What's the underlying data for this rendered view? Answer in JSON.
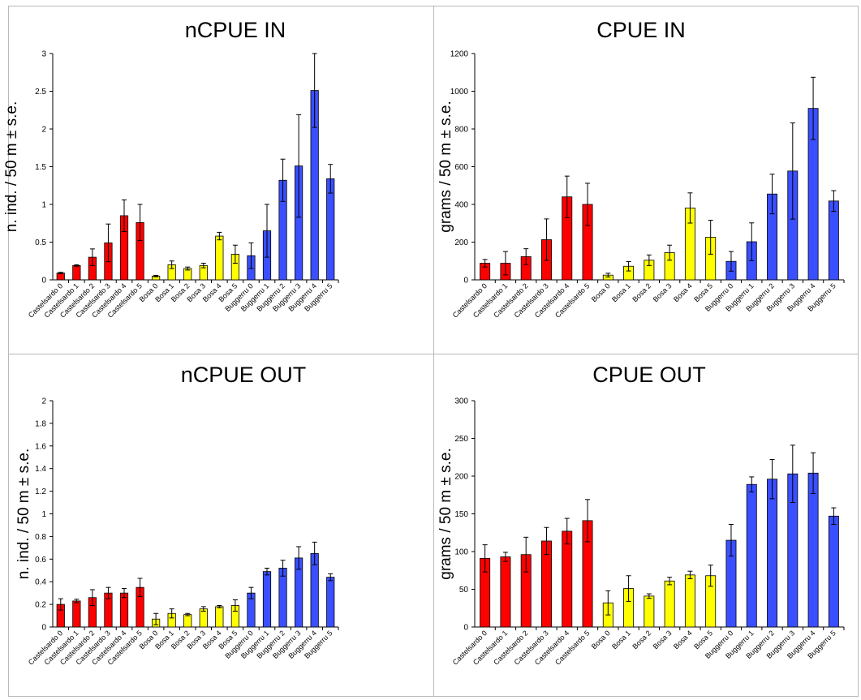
{
  "chart_data": [
    {
      "type": "bar",
      "title": "nCPUE IN",
      "ylabel": "n. ind. / 50 m ± s.e.",
      "ylim": [
        0,
        3
      ],
      "yticks": [
        0,
        0.5,
        1,
        1.5,
        2,
        2.5,
        3
      ],
      "categories": [
        "Castelsardo 0",
        "Castelsardo 1",
        "Castelsardo 2",
        "Castelsardo 3",
        "Castelsardo 4",
        "Castelsardo 5",
        "Bosa 0",
        "Bosa 1",
        "Bosa 2",
        "Bosa 3",
        "Bosa 4",
        "Bosa 5",
        "Buggerru 0",
        "Buggerru 1",
        "Buggerru 2",
        "Buggerru 3",
        "Buggerru 4",
        "Buggerru 5"
      ],
      "values": [
        0.09,
        0.19,
        0.3,
        0.49,
        0.85,
        0.76,
        0.05,
        0.2,
        0.15,
        0.19,
        0.58,
        0.34,
        0.32,
        0.65,
        1.32,
        1.51,
        2.51,
        1.34
      ],
      "errors": [
        0.01,
        0.01,
        0.11,
        0.25,
        0.21,
        0.24,
        0.01,
        0.05,
        0.02,
        0.03,
        0.05,
        0.12,
        0.17,
        0.35,
        0.28,
        0.68,
        0.49,
        0.19
      ],
      "colors": [
        "#ff0000",
        "#ff0000",
        "#ff0000",
        "#ff0000",
        "#ff0000",
        "#ff0000",
        "#ffff00",
        "#ffff00",
        "#ffff00",
        "#ffff00",
        "#ffff00",
        "#ffff00",
        "#3a4fff",
        "#3a4fff",
        "#3a4fff",
        "#3a4fff",
        "#3a4fff",
        "#3a4fff"
      ]
    },
    {
      "type": "bar",
      "title": "CPUE IN",
      "ylabel": "grams / 50 m ± s.e.",
      "ylim": [
        0,
        1200
      ],
      "yticks": [
        0,
        200,
        400,
        600,
        800,
        1000,
        1200
      ],
      "categories": [
        "Castelsardo 0",
        "Castelsardo 1",
        "Castelsardo 2",
        "Castelsardo 3",
        "Castelsardo 4",
        "Castelsardo 5",
        "Bosa 0",
        "Bosa 1",
        "Bosa 2",
        "Bosa 3",
        "Bosa 4",
        "Bosa 5",
        "Buggerru 0",
        "Buggerru 1",
        "Buggerru 2",
        "Buggerru 3",
        "Buggerru 4",
        "Buggerru 5"
      ],
      "values": [
        88,
        88,
        123,
        213,
        440,
        400,
        25,
        72,
        104,
        144,
        381,
        226,
        98,
        202,
        455,
        577,
        909,
        418
      ],
      "errors": [
        20,
        62,
        42,
        110,
        110,
        112,
        10,
        25,
        28,
        40,
        80,
        90,
        52,
        100,
        105,
        255,
        165,
        55
      ],
      "colors": [
        "#ff0000",
        "#ff0000",
        "#ff0000",
        "#ff0000",
        "#ff0000",
        "#ff0000",
        "#ffff00",
        "#ffff00",
        "#ffff00",
        "#ffff00",
        "#ffff00",
        "#ffff00",
        "#3a4fff",
        "#3a4fff",
        "#3a4fff",
        "#3a4fff",
        "#3a4fff",
        "#3a4fff"
      ]
    },
    {
      "type": "bar",
      "title": "nCPUE OUT",
      "ylabel": "n. ind. / 50 m ± s.e.",
      "ylim": [
        0,
        2
      ],
      "yticks": [
        0,
        0.2,
        0.4,
        0.6,
        0.8,
        1,
        1.2,
        1.4,
        1.6,
        1.8,
        2
      ],
      "categories": [
        "Castelsardo 0",
        "Castelsardo 1",
        "Castelsardo 2",
        "Castelsardo 3",
        "Castelsardo 4",
        "Castelsardo 5",
        "Bosa 0",
        "Bosa 1",
        "Bosa 2",
        "Bosa 3",
        "Bosa 4",
        "Bosa 5",
        "Buggerru 0",
        "Buggerru 1",
        "Buggerru 2",
        "Buggerru 3",
        "Buggerru 4",
        "Buggerru 5"
      ],
      "values": [
        0.2,
        0.23,
        0.26,
        0.3,
        0.3,
        0.35,
        0.07,
        0.12,
        0.11,
        0.16,
        0.18,
        0.19,
        0.3,
        0.49,
        0.52,
        0.61,
        0.65,
        0.44
      ],
      "errors": [
        0.05,
        0.015,
        0.07,
        0.05,
        0.04,
        0.08,
        0.05,
        0.04,
        0.01,
        0.02,
        0.01,
        0.05,
        0.05,
        0.03,
        0.07,
        0.1,
        0.1,
        0.03
      ],
      "colors": [
        "#ff0000",
        "#ff0000",
        "#ff0000",
        "#ff0000",
        "#ff0000",
        "#ff0000",
        "#ffff00",
        "#ffff00",
        "#ffff00",
        "#ffff00",
        "#ffff00",
        "#ffff00",
        "#3a4fff",
        "#3a4fff",
        "#3a4fff",
        "#3a4fff",
        "#3a4fff",
        "#3a4fff"
      ]
    },
    {
      "type": "bar",
      "title": "CPUE OUT",
      "ylabel": "grams / 50 m ± s.e.",
      "ylim": [
        0,
        300
      ],
      "yticks": [
        0,
        50,
        100,
        150,
        200,
        250,
        300
      ],
      "categories": [
        "Castelsardo 0",
        "Castelsardo 1",
        "Castelsardo 2",
        "Castelsardo 3",
        "Castelsardo 4",
        "Castelsardo 5",
        "Bosa 0",
        "Bosa 1",
        "Bosa 2",
        "Bosa 3",
        "Bosa 4",
        "Bosa 5",
        "Buggerru 0",
        "Buggerru 1",
        "Buggerru 2",
        "Buggerru 3",
        "Buggerru 4",
        "Buggerru 5"
      ],
      "values": [
        91,
        93,
        96,
        114,
        127,
        141,
        32,
        51,
        41,
        61,
        69,
        68,
        115,
        189,
        196,
        203,
        204,
        147
      ],
      "errors": [
        18,
        6,
        23,
        18,
        17,
        28,
        16,
        17,
        3,
        5,
        5,
        14,
        21,
        10,
        26,
        38,
        27,
        11
      ],
      "colors": [
        "#ff0000",
        "#ff0000",
        "#ff0000",
        "#ff0000",
        "#ff0000",
        "#ff0000",
        "#ffff00",
        "#ffff00",
        "#ffff00",
        "#ffff00",
        "#ffff00",
        "#ffff00",
        "#3a4fff",
        "#3a4fff",
        "#3a4fff",
        "#3a4fff",
        "#3a4fff",
        "#3a4fff"
      ]
    }
  ]
}
